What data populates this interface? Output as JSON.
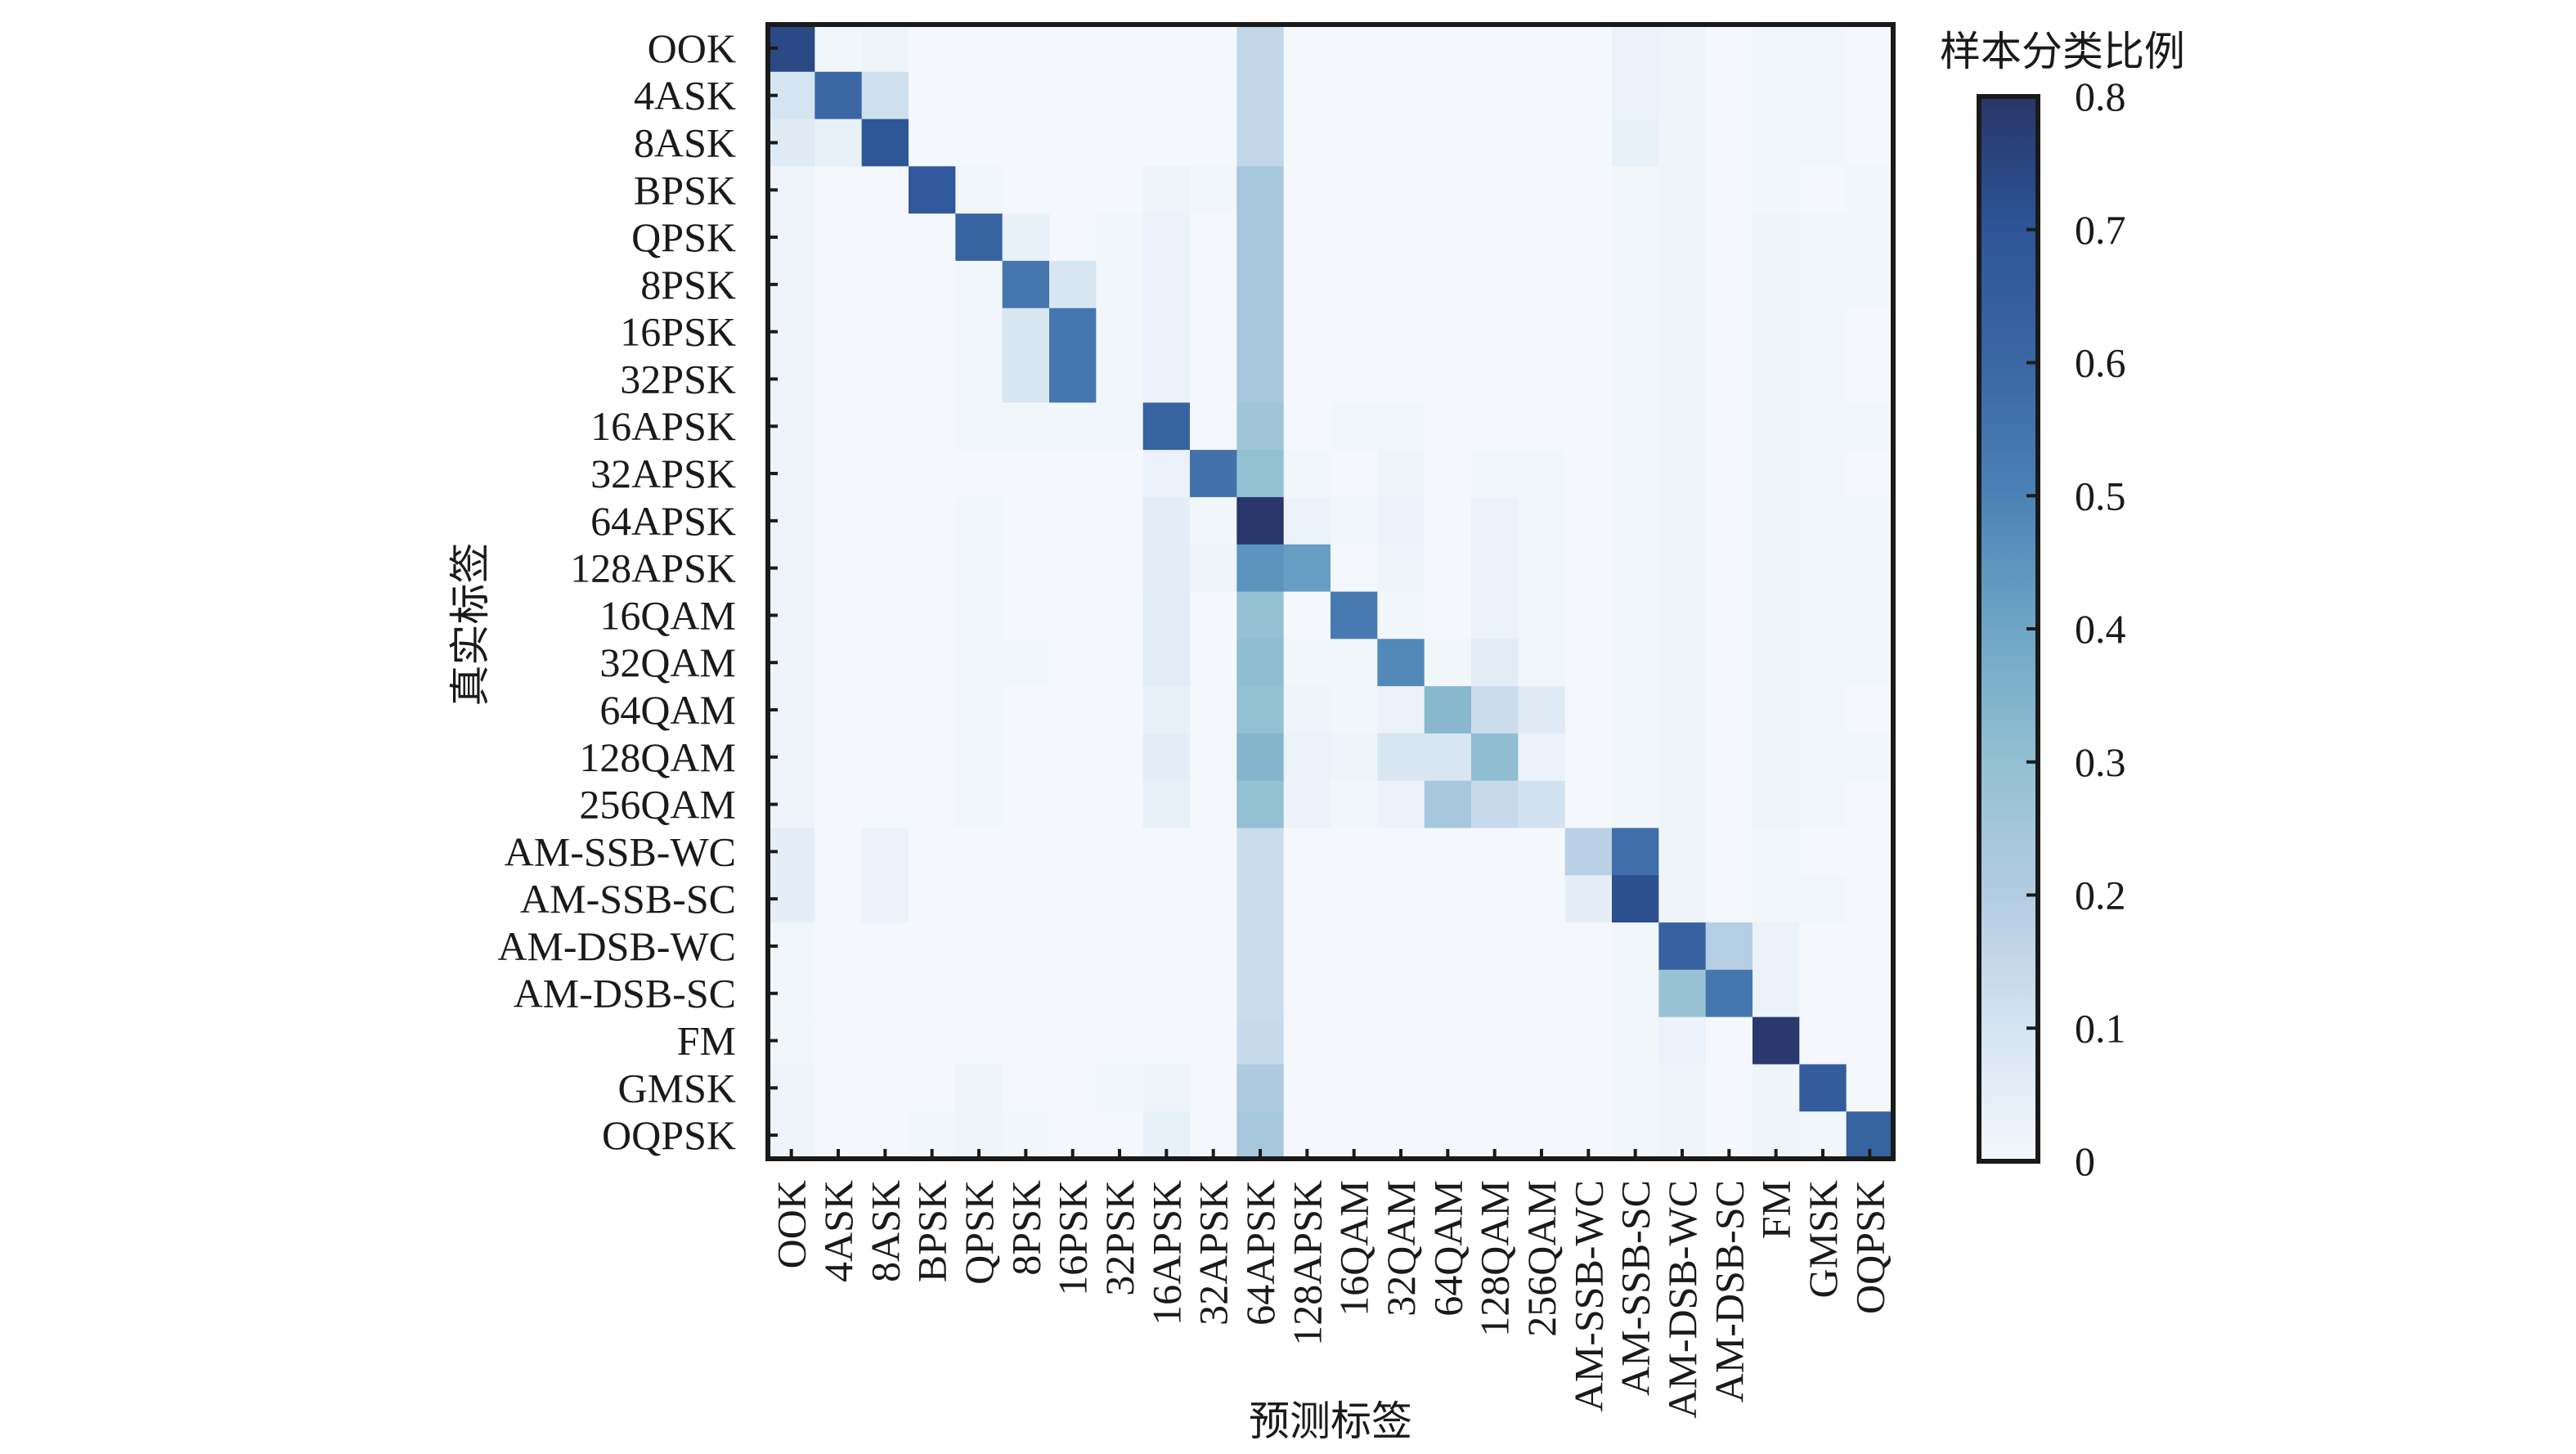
{
  "chart_data": {
    "type": "heatmap",
    "title": "",
    "xlabel": "预测标签",
    "ylabel": "真实标签",
    "colorbar_label": "样本分类比例",
    "colorbar_range": [
      0,
      0.8
    ],
    "colorbar_ticks": [
      "0",
      "0.1",
      "0.2",
      "0.3",
      "0.4",
      "0.5",
      "0.6",
      "0.7",
      "0.8"
    ],
    "colormap": [
      "#f4f8fc",
      "#d5e4f1",
      "#b3cce2",
      "#93c0d2",
      "#6ea5c6",
      "#4c82b5",
      "#3b66a4",
      "#2d5597",
      "#283669"
    ],
    "grid": false,
    "x_categories": [
      "OOK",
      "4ASK",
      "8ASK",
      "BPSK",
      "QPSK",
      "8PSK",
      "16PSK",
      "32PSK",
      "16APSK",
      "32APSK",
      "64APSK",
      "128APSK",
      "16QAM",
      "32QAM",
      "64QAM",
      "128QAM",
      "256QAM",
      "AM-SSB-WC",
      "AM-SSB-SC",
      "AM-DSB-WC",
      "AM-DSB-SC",
      "FM",
      "GMSK",
      "OQPSK"
    ],
    "y_categories": [
      "OOK",
      "4ASK",
      "8ASK",
      "BPSK",
      "QPSK",
      "8PSK",
      "16PSK",
      "32PSK",
      "16APSK",
      "32APSK",
      "64APSK",
      "128APSK",
      "16QAM",
      "32QAM",
      "64QAM",
      "128QAM",
      "256QAM",
      "AM-SSB-WC",
      "AM-SSB-SC",
      "AM-DSB-WC",
      "AM-DSB-SC",
      "FM",
      "GMSK",
      "OQPSK"
    ],
    "values": [
      [
        0.74,
        0.01,
        0.02,
        0,
        0,
        0,
        0,
        0,
        0,
        0,
        0.16,
        0,
        0,
        0,
        0,
        0,
        0,
        0,
        0.03,
        0.02,
        0,
        0.01,
        0.01,
        0
      ],
      [
        0.1,
        0.6,
        0.12,
        0,
        0,
        0,
        0,
        0,
        0,
        0,
        0.16,
        0,
        0,
        0,
        0,
        0,
        0,
        0,
        0.03,
        0.02,
        0,
        0.01,
        0.01,
        0
      ],
      [
        0.07,
        0.04,
        0.69,
        0,
        0,
        0,
        0,
        0,
        0,
        0,
        0.16,
        0,
        0,
        0,
        0,
        0,
        0,
        0,
        0.04,
        0.02,
        0,
        0.01,
        0.01,
        0
      ],
      [
        0.02,
        0,
        0,
        0.68,
        0.01,
        0,
        0,
        0,
        0.02,
        0.01,
        0.24,
        0,
        0,
        0,
        0,
        0,
        0,
        0,
        0.01,
        0.02,
        0,
        0.01,
        0,
        0.01
      ],
      [
        0.02,
        0,
        0,
        0,
        0.62,
        0.04,
        0,
        0.01,
        0.03,
        0,
        0.24,
        0,
        0,
        0,
        0,
        0,
        0,
        0,
        0.01,
        0.02,
        0,
        0.02,
        0.01,
        0.01
      ],
      [
        0.02,
        0,
        0,
        0,
        0.01,
        0.54,
        0.09,
        0.01,
        0.03,
        0,
        0.24,
        0,
        0,
        0,
        0,
        0,
        0,
        0,
        0.01,
        0.02,
        0,
        0.02,
        0.01,
        0.01
      ],
      [
        0.02,
        0,
        0,
        0,
        0.01,
        0.09,
        0.54,
        0.01,
        0.03,
        0,
        0.24,
        0,
        0,
        0,
        0,
        0,
        0,
        0,
        0.01,
        0.02,
        0,
        0.02,
        0.01,
        0
      ],
      [
        0.02,
        0,
        0,
        0,
        0.01,
        0.09,
        0.54,
        0.01,
        0.03,
        0,
        0.24,
        0,
        0,
        0,
        0,
        0,
        0,
        0,
        0.01,
        0.02,
        0,
        0.02,
        0.01,
        0
      ],
      [
        0.02,
        0,
        0,
        0,
        0.01,
        0.01,
        0.01,
        0.01,
        0.62,
        0,
        0.26,
        0,
        0.01,
        0.01,
        0,
        0,
        0,
        0,
        0.01,
        0.02,
        0,
        0.02,
        0.01,
        0.01
      ],
      [
        0.02,
        0,
        0,
        0,
        0,
        0,
        0,
        0,
        0.03,
        0.56,
        0.3,
        0.01,
        0,
        0.02,
        0,
        0.01,
        0.01,
        0,
        0.01,
        0.02,
        0,
        0.02,
        0.01,
        0
      ],
      [
        0.02,
        0,
        0,
        0,
        0.01,
        0,
        0,
        0,
        0.05,
        0.01,
        0.8,
        0.03,
        0.01,
        0.03,
        0,
        0.03,
        0.01,
        0,
        0.01,
        0.02,
        0,
        0.02,
        0.01,
        0.01
      ],
      [
        0.02,
        0,
        0,
        0,
        0.01,
        0,
        0,
        0,
        0.05,
        0.02,
        0.45,
        0.42,
        0,
        0.02,
        0,
        0.03,
        0.01,
        0,
        0.01,
        0.02,
        0,
        0.02,
        0.01,
        0.01
      ],
      [
        0.02,
        0,
        0,
        0,
        0.01,
        0,
        0,
        0,
        0.06,
        0,
        0.29,
        0,
        0.53,
        0.01,
        0,
        0.03,
        0.01,
        0,
        0.01,
        0.02,
        0,
        0.02,
        0.01,
        0.01
      ],
      [
        0.02,
        0,
        0,
        0,
        0.01,
        0.01,
        0,
        0,
        0.06,
        0,
        0.31,
        0.01,
        0.01,
        0.48,
        0.01,
        0.06,
        0.01,
        0,
        0.01,
        0.02,
        0,
        0.02,
        0.01,
        0.01
      ],
      [
        0.02,
        0,
        0,
        0,
        0.01,
        0,
        0,
        0,
        0.04,
        0,
        0.3,
        0.02,
        0.01,
        0.03,
        0.33,
        0.13,
        0.07,
        0,
        0.01,
        0.02,
        0,
        0.02,
        0.01,
        0
      ],
      [
        0.02,
        0,
        0,
        0,
        0.01,
        0,
        0,
        0,
        0.05,
        0,
        0.34,
        0.03,
        0.02,
        0.09,
        0.09,
        0.31,
        0.03,
        0,
        0.01,
        0.02,
        0,
        0.02,
        0.01,
        0.01
      ],
      [
        0.02,
        0,
        0,
        0,
        0.01,
        0,
        0,
        0,
        0.04,
        0,
        0.3,
        0.03,
        0.01,
        0.03,
        0.24,
        0.14,
        0.11,
        0,
        0.01,
        0.02,
        0,
        0.02,
        0.01,
        0
      ],
      [
        0.05,
        0,
        0.03,
        0,
        0,
        0,
        0,
        0,
        0,
        0,
        0.13,
        0,
        0,
        0,
        0,
        0,
        0,
        0.18,
        0.57,
        0.02,
        0,
        0.01,
        0,
        0
      ],
      [
        0.05,
        0,
        0.03,
        0,
        0,
        0,
        0,
        0,
        0,
        0,
        0.13,
        0,
        0,
        0,
        0,
        0,
        0,
        0.05,
        0.72,
        0.02,
        0,
        0.01,
        0.01,
        0
      ],
      [
        0.01,
        0,
        0,
        0,
        0,
        0,
        0,
        0,
        0,
        0,
        0.13,
        0,
        0,
        0,
        0,
        0,
        0,
        0,
        0.01,
        0.63,
        0.19,
        0.03,
        0,
        0
      ],
      [
        0.01,
        0,
        0,
        0,
        0,
        0,
        0,
        0,
        0,
        0,
        0.13,
        0,
        0,
        0,
        0,
        0,
        0,
        0,
        0.01,
        0.28,
        0.54,
        0.03,
        0,
        0
      ],
      [
        0.01,
        0,
        0,
        0,
        0,
        0,
        0,
        0,
        0,
        0,
        0.14,
        0,
        0,
        0,
        0,
        0,
        0,
        0,
        0.01,
        0.03,
        0,
        0.79,
        0,
        0
      ],
      [
        0.02,
        0,
        0,
        0,
        0.02,
        0,
        0,
        0.01,
        0.02,
        0,
        0.22,
        0,
        0,
        0,
        0,
        0,
        0,
        0,
        0.01,
        0.02,
        0,
        0.02,
        0.66,
        0
      ],
      [
        0.02,
        0,
        0,
        0.01,
        0.02,
        0.01,
        0,
        0,
        0.04,
        0,
        0.24,
        0,
        0,
        0,
        0,
        0,
        0,
        0,
        0.01,
        0.02,
        0,
        0.02,
        0.01,
        0.62
      ]
    ]
  }
}
